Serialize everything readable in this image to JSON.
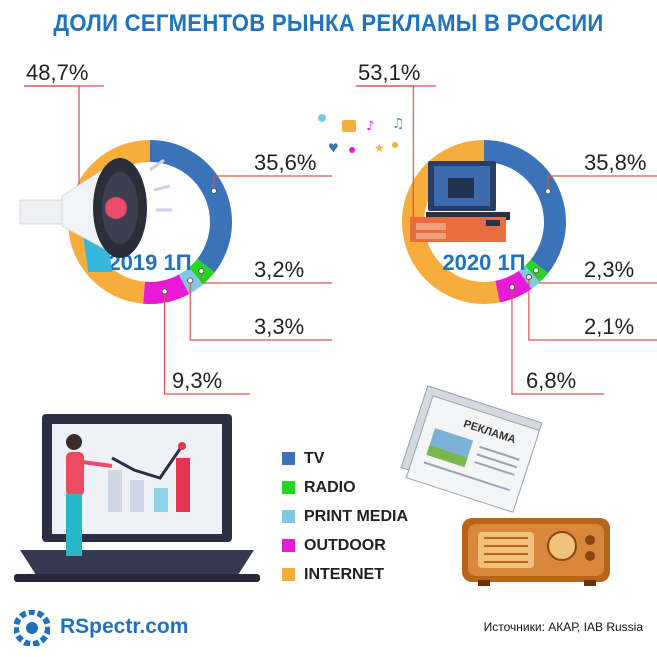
{
  "title": "ДОЛИ СЕГМЕНТОВ РЫНКА РЕКЛАМЫ В РОССИИ",
  "colors": {
    "tv": "#3b73b9",
    "radio": "#22d622",
    "print": "#7fc7e3",
    "outdoor": "#e81ad8",
    "internet": "#f7ad3b",
    "leader": "#d9534f",
    "accent": "#1e73be"
  },
  "chart_data": [
    {
      "type": "pie",
      "title": "2019 1П",
      "categories": [
        "TV",
        "RADIO",
        "PRINT MEDIA",
        "OUTDOOR",
        "INTERNET"
      ],
      "values": [
        35.6,
        3.2,
        3.3,
        9.3,
        48.7
      ],
      "labels": [
        "35,6%",
        "3,2%",
        "3,3%",
        "9,3%",
        "48,7%"
      ]
    },
    {
      "type": "pie",
      "title": "2020 1П",
      "categories": [
        "TV",
        "RADIO",
        "PRINT MEDIA",
        "OUTDOOR",
        "INTERNET"
      ],
      "values": [
        35.8,
        2.3,
        2.1,
        6.8,
        53.1
      ],
      "labels": [
        "35,8%",
        "2,3%",
        "2,1%",
        "6,8%",
        "53,1%"
      ]
    }
  ],
  "legend": [
    {
      "label": "TV",
      "color": "#3b73b9"
    },
    {
      "label": "RADIO",
      "color": "#22d622"
    },
    {
      "label": "PRINT MEDIA",
      "color": "#7fc7e3"
    },
    {
      "label": "OUTDOOR",
      "color": "#e81ad8"
    },
    {
      "label": "INTERNET",
      "color": "#f7ad3b"
    }
  ],
  "illustrations": {
    "newspaper_text": "РЕКЛАМА"
  },
  "footer": {
    "brand": "RSpectr.com",
    "source": "Источники: АКАР, IAB Russia"
  }
}
